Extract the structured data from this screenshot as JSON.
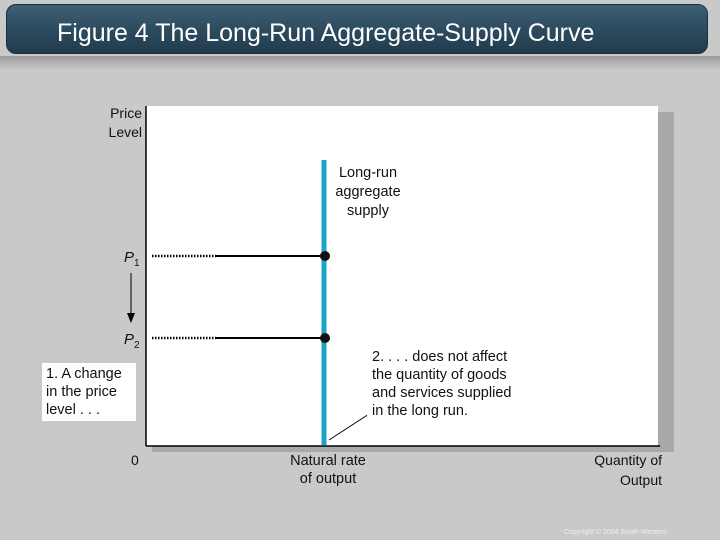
{
  "title": "Figure 4 The Long-Run Aggregate-Supply Curve",
  "axes": {
    "y_label_line1": "Price",
    "y_label_line2": "Level",
    "x_label_line1": "Quantity of",
    "x_label_line2": "Output",
    "origin": "0"
  },
  "curve": {
    "label_line1": "Long-run",
    "label_line2": "aggregate",
    "label_line3": "supply",
    "color": "#19a3c4"
  },
  "price_levels": {
    "p1_base": "P",
    "p1_sub": "1",
    "p2_base": "P",
    "p2_sub": "2"
  },
  "natural_rate": {
    "line1": "Natural rate",
    "line2": "of output"
  },
  "annotation_1": {
    "line1": "1. A change",
    "line2": "in the price",
    "line3": "level . . ."
  },
  "annotation_2": {
    "line1": "2. . . . does not affect",
    "line2": "the quantity of goods",
    "line3": "and services supplied",
    "line4": "in the long run."
  },
  "copyright": "Copyright © 2004 South-Western"
}
